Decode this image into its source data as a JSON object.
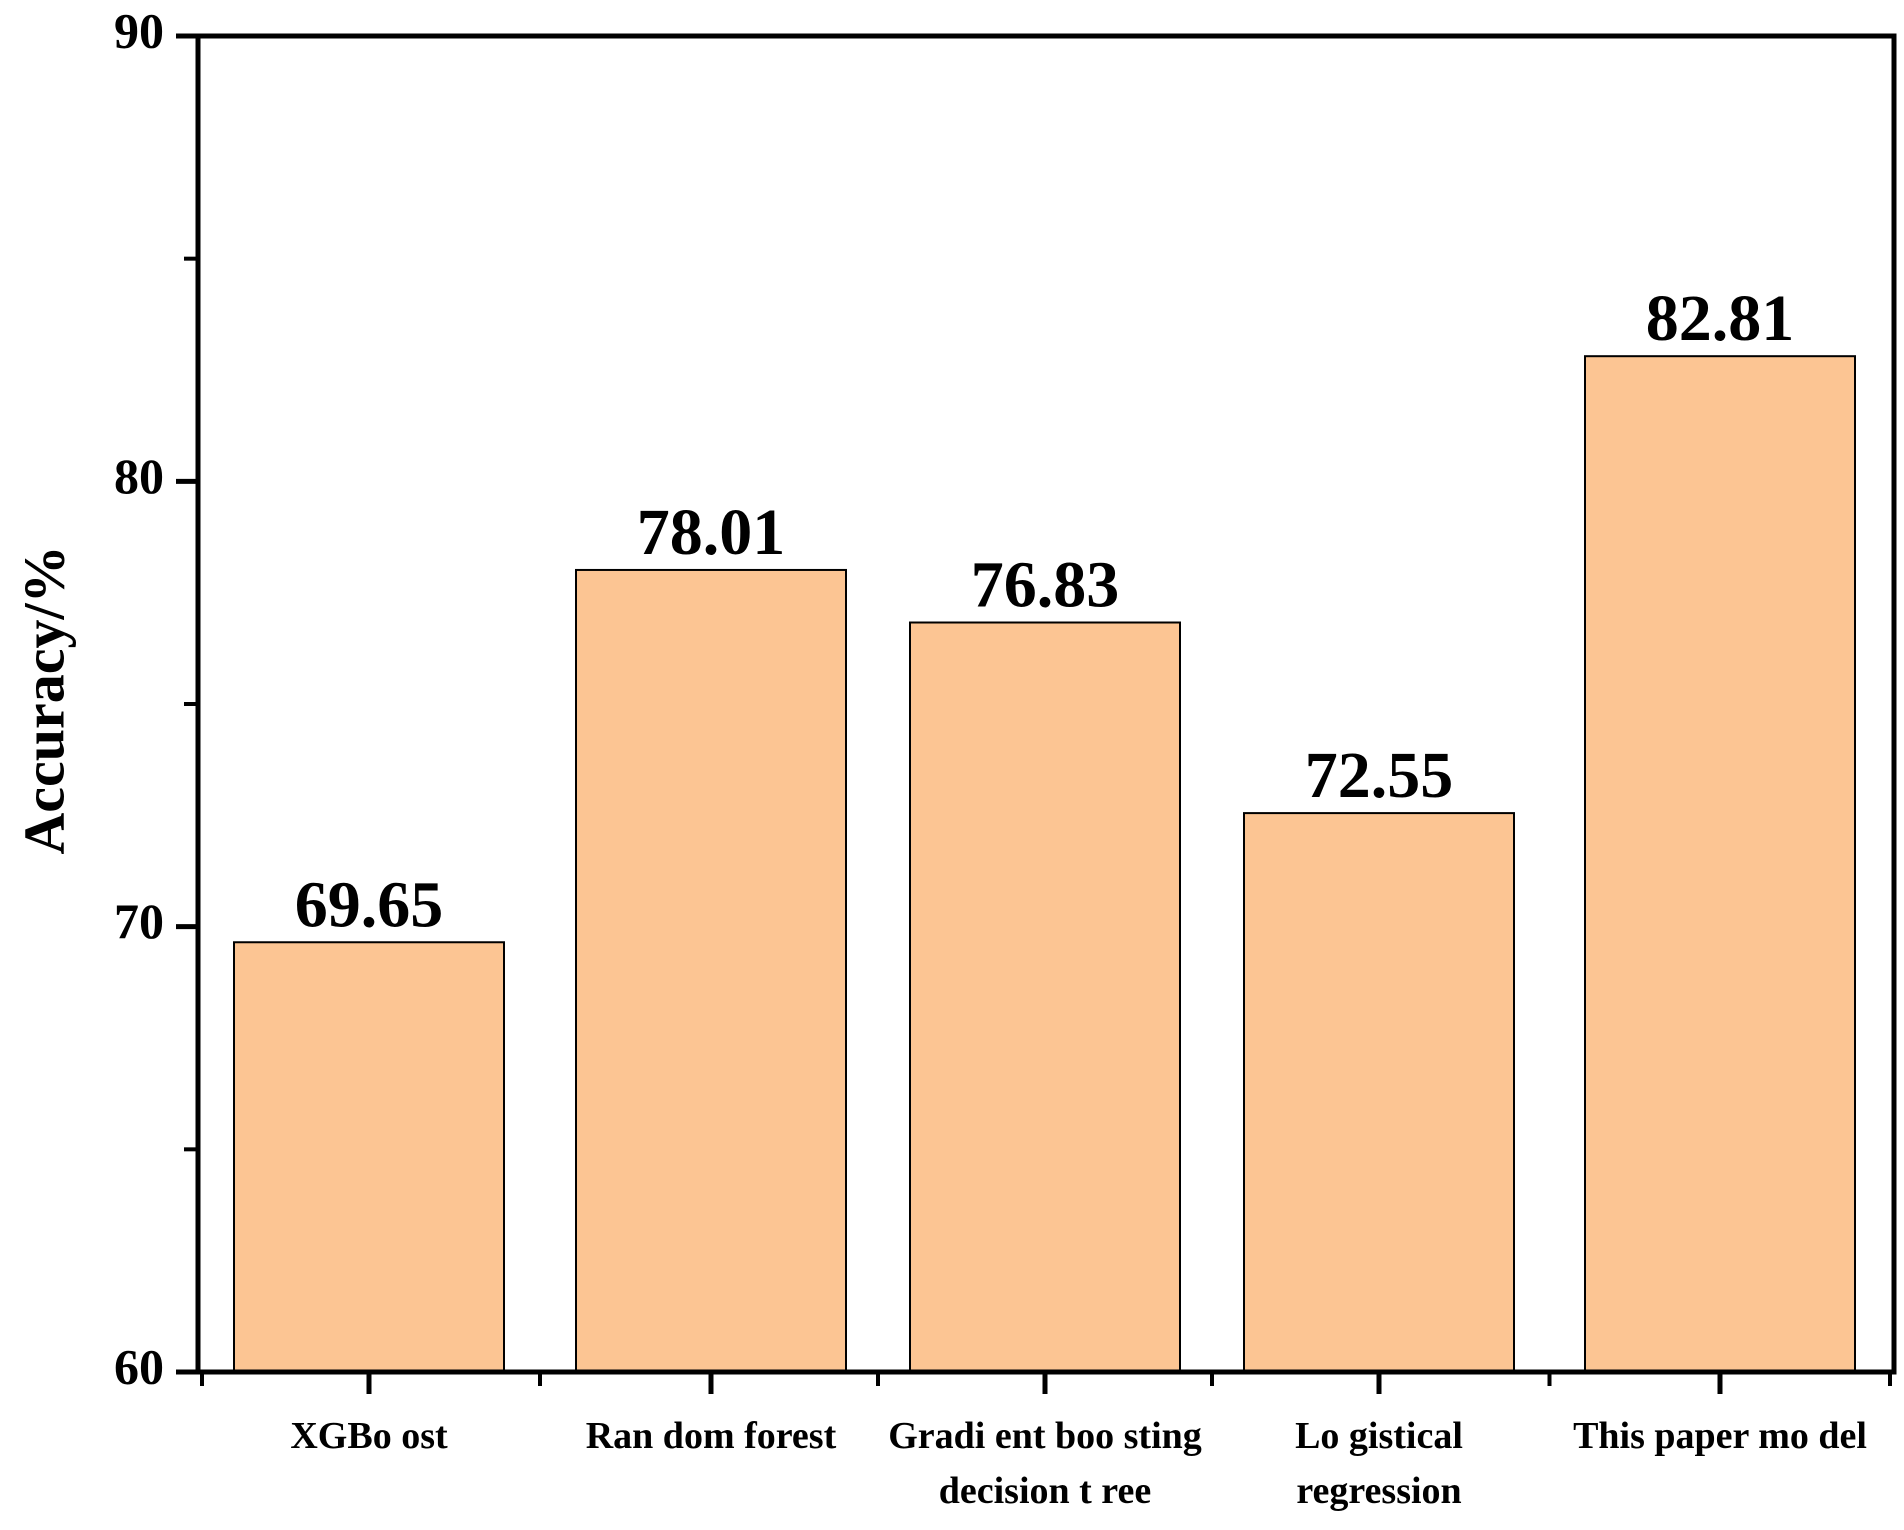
{
  "chart_data": {
    "type": "bar",
    "title": "",
    "xlabel": "",
    "ylabel": "Accuracy/%",
    "ylim": [
      60,
      90
    ],
    "yticks": [
      "60",
      "70",
      "80",
      "90"
    ],
    "minor_ticks": [
      65,
      75,
      85
    ],
    "grid": false,
    "legend": "none",
    "categories": [
      "XGBoost",
      "Random forest",
      "Gradient boosting decision tree",
      "Logistical regression",
      "This paper model"
    ],
    "category_lines": [
      [
        "XGBo ost"
      ],
      [
        "Ran dom forest"
      ],
      [
        "Gradi ent boo sting",
        "decision t ree"
      ],
      [
        "Lo gistical",
        "regression"
      ],
      [
        "This paper mo del"
      ]
    ],
    "values": [
      69.65,
      78.01,
      76.83,
      72.55,
      82.81
    ],
    "value_labels": [
      "69.65",
      "78.01",
      "76.83",
      "72.55",
      "82.81"
    ],
    "colors": {
      "bar_fill": "#FCC593",
      "bar_stroke": "#000000",
      "axis": "#000000"
    }
  }
}
